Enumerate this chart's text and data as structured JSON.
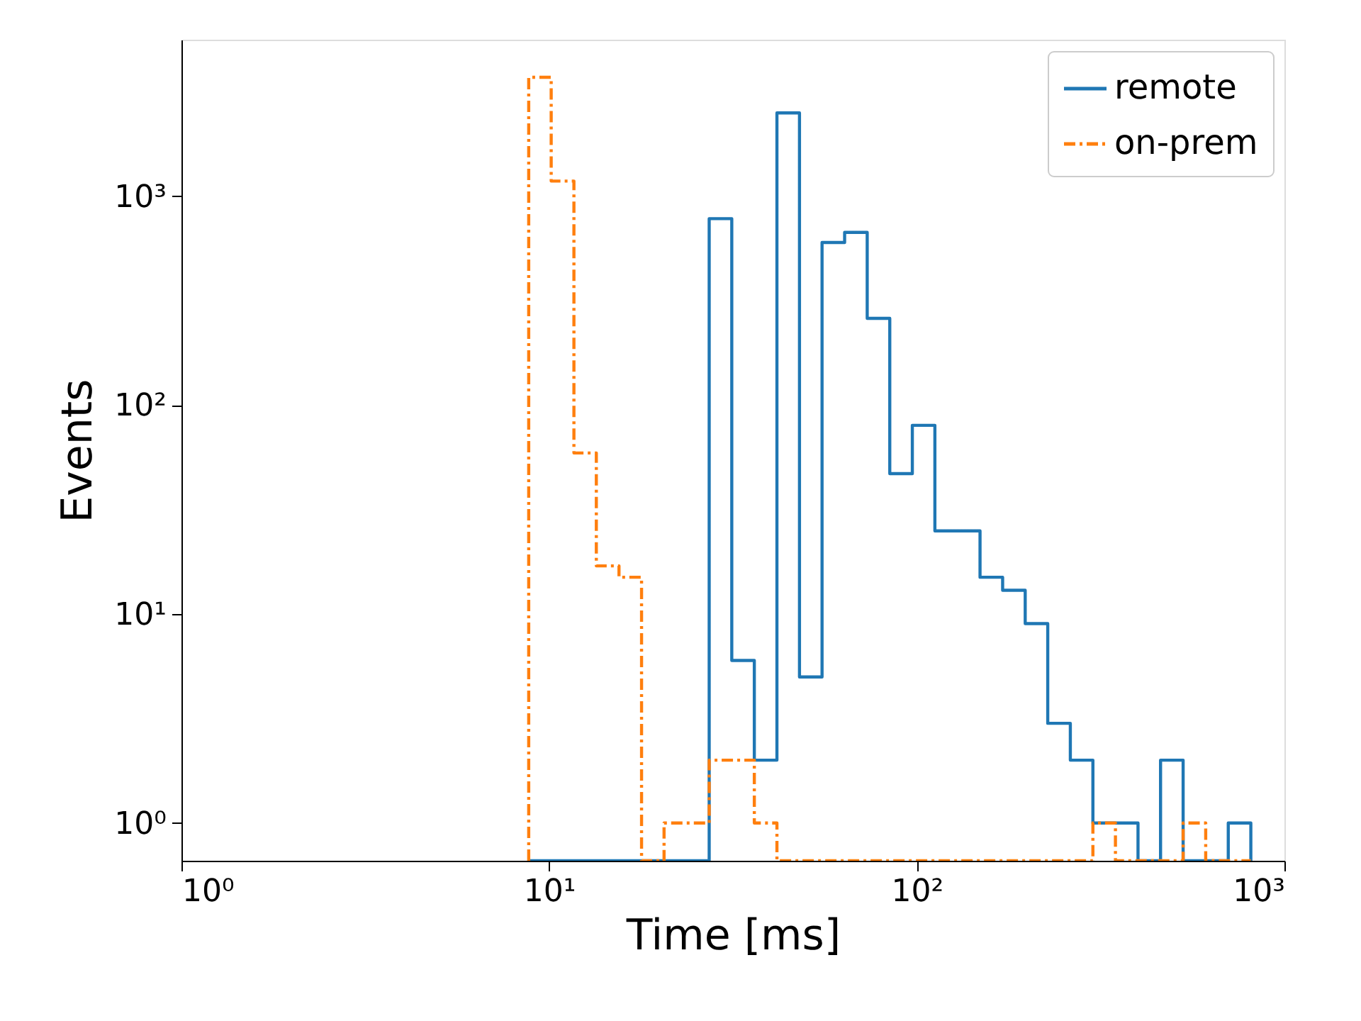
{
  "chart_data": {
    "type": "histogram",
    "xlabel": "Time [ms]",
    "ylabel": "Events",
    "log": "xy",
    "grid": false,
    "legend": "top right",
    "bins": [
      8.8,
      10.13,
      11.68,
      13.44,
      15.49,
      17.84,
      20.54,
      23.66,
      27.25,
      31.39,
      36.15,
      41.65,
      47.97,
      55.25,
      63.64,
      73.31,
      84.44,
      97.25,
      112.0,
      129.0,
      148.6,
      171.2,
      197.2,
      227.1,
      261.6,
      301.3,
      347.0,
      399.7,
      460.3,
      530.2,
      610.7,
      703.4,
      810.2
    ],
    "series": [
      {
        "name": "remote",
        "color": "#1f77b4",
        "line_style": "solid",
        "values": [
          null,
          null,
          null,
          null,
          null,
          null,
          null,
          null,
          780,
          6,
          2,
          2500,
          5,
          600,
          670,
          260,
          47,
          80,
          25,
          25,
          15,
          13,
          9,
          3,
          2,
          1,
          1,
          null,
          2,
          null,
          null,
          1
        ]
      },
      {
        "name": "on-prem",
        "color": "#ff7f0e",
        "line_style": "dashdot",
        "values": [
          3700,
          1180,
          59,
          17,
          15,
          null,
          1,
          1,
          2,
          2,
          1,
          null,
          null,
          null,
          null,
          null,
          null,
          null,
          null,
          null,
          null,
          null,
          null,
          null,
          null,
          1,
          null,
          null,
          null,
          1,
          null,
          null
        ]
      }
    ],
    "xlim": [
      1,
      1000
    ],
    "xticks": [
      {
        "value": 1,
        "label": "10⁰"
      },
      {
        "value": 10,
        "label": "10¹"
      },
      {
        "value": 100,
        "label": "10²"
      },
      {
        "value": 1000,
        "label": "10³"
      }
    ],
    "ylim": [
      0.66,
      5600
    ],
    "yticks": [
      {
        "value": 1,
        "label": "10⁰"
      },
      {
        "value": 10,
        "label": "10¹"
      },
      {
        "value": 100,
        "label": "10²"
      },
      {
        "value": 1000,
        "label": "10³"
      }
    ]
  }
}
